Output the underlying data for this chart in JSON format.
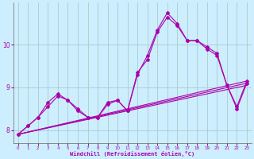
{
  "xlabel": "Windchill (Refroidissement éolien,°C)",
  "background_color": "#cceeff",
  "grid_color": "#aacccc",
  "line_color": "#aa00aa",
  "x_values": [
    0,
    1,
    2,
    3,
    4,
    5,
    6,
    7,
    8,
    9,
    10,
    11,
    12,
    13,
    14,
    15,
    16,
    17,
    18,
    19,
    20,
    21,
    22,
    23
  ],
  "line1": [
    7.9,
    8.1,
    8.3,
    8.65,
    8.85,
    8.7,
    8.5,
    8.3,
    8.3,
    8.65,
    8.7,
    8.45,
    9.3,
    9.75,
    10.35,
    10.75,
    10.5,
    10.1,
    10.1,
    9.95,
    9.8,
    9.05,
    8.55,
    9.15
  ],
  "line2": [
    7.9,
    8.1,
    8.3,
    8.55,
    8.8,
    8.7,
    8.45,
    8.3,
    8.3,
    8.6,
    8.7,
    8.45,
    9.35,
    9.65,
    10.3,
    10.65,
    10.45,
    10.1,
    10.1,
    9.9,
    9.75,
    9.05,
    8.5,
    9.1
  ],
  "trend1": [
    7.9,
    9.15
  ],
  "trend2": [
    7.9,
    9.05
  ],
  "trend3": [
    7.9,
    9.1
  ],
  "ylim": [
    7.7,
    11.0
  ],
  "xlim": [
    -0.5,
    23.5
  ],
  "yticks": [
    8,
    9,
    10
  ],
  "xticks": [
    0,
    1,
    2,
    3,
    4,
    5,
    6,
    7,
    8,
    9,
    10,
    11,
    12,
    13,
    14,
    15,
    16,
    17,
    18,
    19,
    20,
    21,
    22,
    23
  ]
}
